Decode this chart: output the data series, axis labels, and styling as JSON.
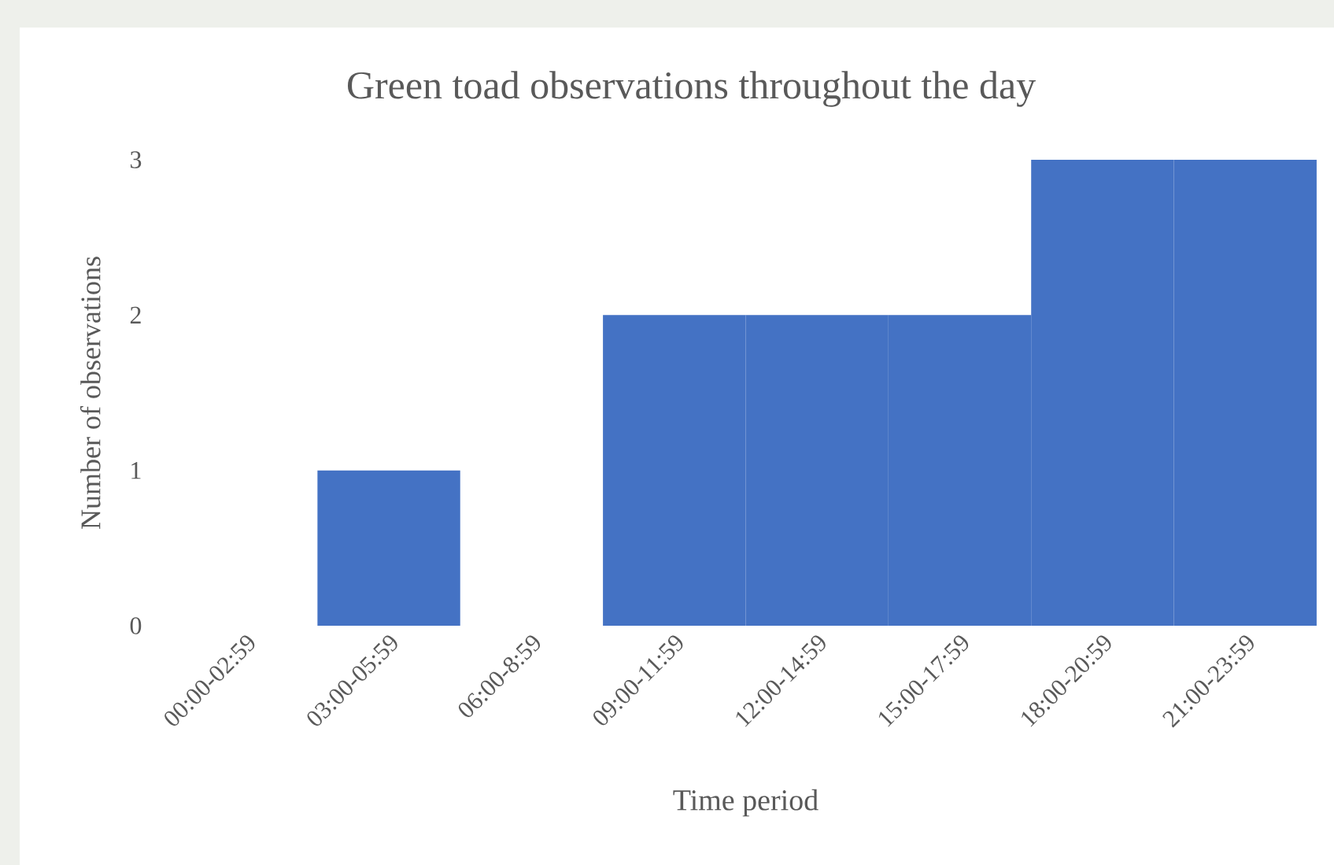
{
  "chart_data": {
    "type": "bar",
    "title": "Green toad observations throughout the day",
    "xlabel": "Time period",
    "ylabel": "Number of observations",
    "categories": [
      "00:00-02:59",
      "03:00-05:59",
      "06:00-8:59",
      "09:00-11:59",
      "12:00-14:59",
      "15:00-17:59",
      "18:00-20:59",
      "21:00-23:59"
    ],
    "values": [
      0,
      1,
      0,
      2,
      2,
      2,
      3,
      3
    ],
    "color": "#4472c4",
    "ylim": [
      0,
      3
    ],
    "yticks": [
      0,
      1,
      2,
      3
    ],
    "grid": false
  }
}
